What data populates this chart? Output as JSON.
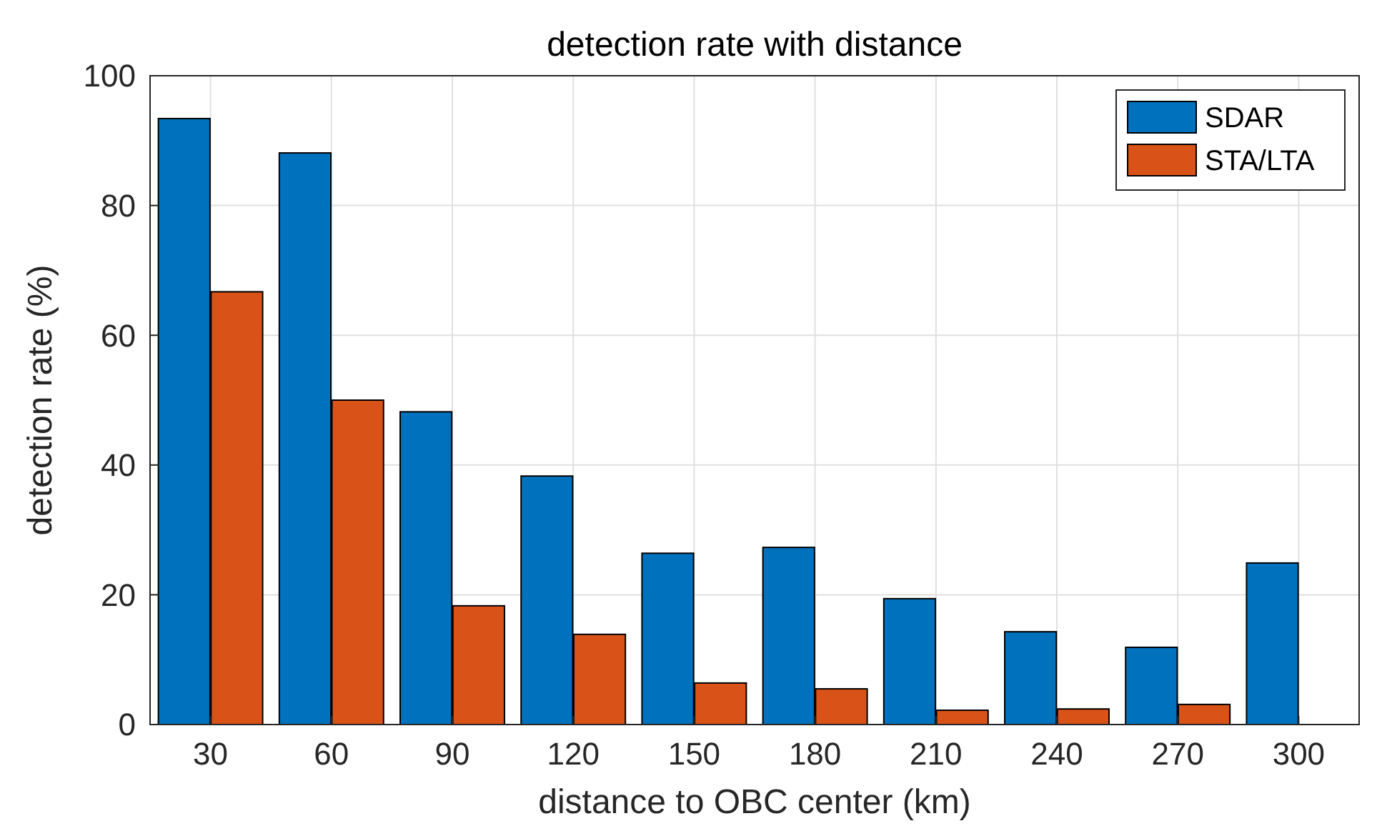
{
  "chart_data": {
    "type": "bar",
    "title": "detection rate with distance",
    "xlabel": "distance to OBC center (km)",
    "ylabel": "detection rate (%)",
    "categories": [
      "30",
      "60",
      "90",
      "120",
      "150",
      "180",
      "210",
      "240",
      "270",
      "300"
    ],
    "series": [
      {
        "name": "SDAR",
        "color": "#0072bd",
        "values": [
          93.4,
          88.1,
          48.2,
          38.3,
          26.4,
          27.3,
          19.4,
          14.3,
          11.9,
          24.9
        ]
      },
      {
        "name": "STA/LTA",
        "color": "#d95319",
        "values": [
          66.7,
          50.0,
          18.3,
          13.9,
          6.4,
          5.5,
          2.2,
          2.4,
          3.1,
          null
        ]
      }
    ],
    "ylim": [
      0,
      100
    ],
    "yticks": [
      0,
      20,
      40,
      60,
      80,
      100
    ],
    "grid": true,
    "legend": "top right"
  }
}
